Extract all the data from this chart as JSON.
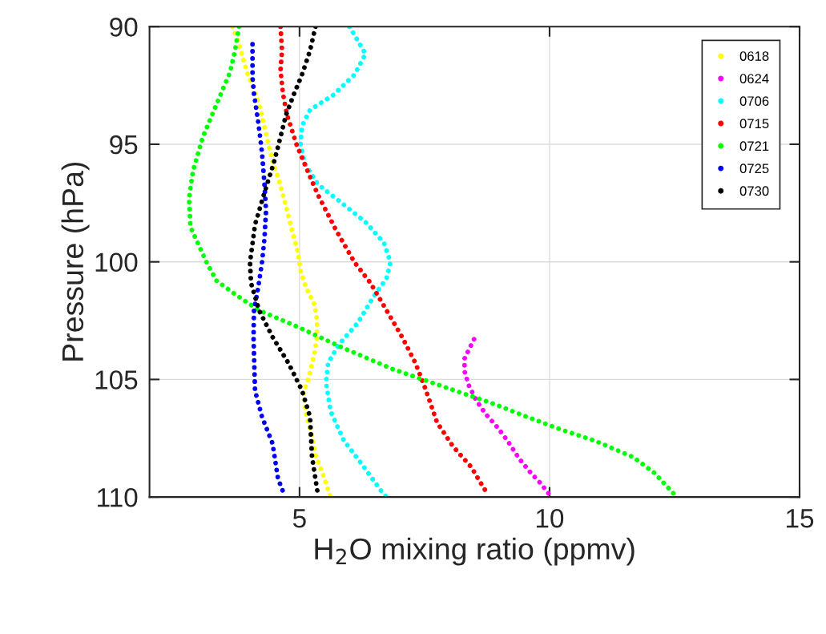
{
  "chart_data": {
    "type": "line",
    "xlabel": "H$_{2}$O mixing ratio (ppmv)",
    "ylabel": "Pressure (hPa)",
    "xlim": [
      2,
      15
    ],
    "xticks": [
      5,
      10,
      15
    ],
    "ylim": [
      110,
      90
    ],
    "yticks": [
      90,
      95,
      100,
      105,
      110
    ],
    "grid": true,
    "legend": "top right",
    "line_style": "dotted",
    "marker": "none",
    "series": [
      {
        "name": "0618",
        "color": "#ffff00",
        "x": [
          3.66,
          3.79,
          3.95,
          4.08,
          4.19,
          4.27,
          4.38,
          4.46,
          4.59,
          4.7,
          4.78,
          4.86,
          4.95,
          5.03,
          5.14,
          5.3,
          5.35,
          5.35,
          5.3,
          5.19,
          5.08,
          5.14,
          5.24,
          5.33,
          5.46,
          5.62
        ],
        "values": [
          90,
          90.75,
          91.94,
          92.62,
          93.3,
          93.99,
          95.01,
          95.69,
          96.54,
          97.39,
          98.07,
          98.76,
          99.44,
          100.46,
          101.14,
          101.82,
          102.5,
          103.19,
          103.87,
          104.89,
          105.57,
          106.59,
          107.27,
          108.3,
          108.98,
          110
        ]
      },
      {
        "name": "0624",
        "color": "#ff00ff",
        "x": [
          8.49,
          8.3,
          8.3,
          8.38,
          8.54,
          8.73,
          8.96,
          9.16,
          9.39,
          9.6,
          9.81,
          10.0
        ],
        "values": [
          103.29,
          104.11,
          104.65,
          105.23,
          105.91,
          106.49,
          107.04,
          107.61,
          108.36,
          108.91,
          109.39,
          109.9
        ]
      },
      {
        "name": "0706",
        "color": "#00ffff",
        "x": [
          6.0,
          6.32,
          6.1,
          5.68,
          5.21,
          5.05,
          5.02,
          5.1,
          5.37,
          5.78,
          6.32,
          6.69,
          6.82,
          6.74,
          6.48,
          6.16,
          5.78,
          5.57,
          5.53,
          5.62,
          5.89,
          6.26,
          6.64,
          6.74
        ],
        "values": [
          90,
          91.16,
          92.04,
          92.9,
          93.54,
          94.22,
          95.01,
          95.79,
          96.71,
          97.39,
          98.31,
          99.2,
          100.02,
          100.7,
          101.48,
          102.61,
          103.53,
          104.31,
          105.13,
          106.35,
          107.61,
          108.64,
          109.76,
          110
        ]
      },
      {
        "name": "0715",
        "color": "#ff0000",
        "x": [
          4.62,
          4.65,
          4.62,
          4.67,
          4.75,
          4.94,
          5.14,
          5.37,
          5.73,
          6.1,
          6.42,
          6.74,
          7.05,
          7.32,
          7.53,
          7.75,
          8.07,
          8.44,
          8.6,
          8.77
        ],
        "values": [
          90,
          91.02,
          91.84,
          92.86,
          93.75,
          95.01,
          96.03,
          97.16,
          98.65,
          100.02,
          100.9,
          102.06,
          103.19,
          104.31,
          105.47,
          106.83,
          107.85,
          108.74,
          109.32,
          109.9
        ]
      },
      {
        "name": "0721",
        "color": "#00ff00",
        "x": [
          3.79,
          3.71,
          3.61,
          3.34,
          3.07,
          2.87,
          2.79,
          2.82,
          3.14,
          3.34,
          3.71,
          4.19,
          4.98,
          5.84,
          6.85,
          7.91,
          8.81,
          9.55,
          10.19,
          10.91,
          11.67,
          12.1,
          12.5
        ],
        "values": [
          90,
          91.02,
          91.94,
          93.3,
          94.67,
          96.13,
          97.29,
          98.52,
          100.02,
          100.8,
          101.38,
          102.06,
          102.78,
          103.63,
          104.55,
          105.33,
          105.98,
          106.59,
          107.1,
          107.61,
          108.3,
          108.98,
          109.9
        ]
      },
      {
        "name": "0725",
        "color": "#0000ff",
        "x": [
          4.06,
          4.06,
          4.09,
          4.17,
          4.25,
          4.3,
          4.33,
          4.3,
          4.25,
          4.17,
          4.09,
          4.08,
          4.11,
          4.25,
          4.46,
          4.57,
          4.7
        ],
        "values": [
          90.75,
          92.18,
          92.86,
          93.99,
          95.35,
          96.71,
          97.84,
          98.99,
          100.02,
          101.14,
          102.06,
          103.19,
          105.47,
          106.59,
          107.72,
          109.22,
          109.93
        ]
      },
      {
        "name": "0730",
        "color": "#000000",
        "x": [
          5.32,
          5.21,
          5.05,
          4.89,
          4.73,
          4.57,
          4.49,
          4.3,
          4.11,
          4.01,
          4.03,
          4.19,
          4.46,
          4.78,
          5.05,
          5.21,
          5.25,
          5.37
        ],
        "values": [
          90,
          91.02,
          92.04,
          92.86,
          93.75,
          95.11,
          95.76,
          97.05,
          98.42,
          100.02,
          100.9,
          102.06,
          103.19,
          104.31,
          105.47,
          106.59,
          108.3,
          109.93
        ]
      }
    ]
  }
}
